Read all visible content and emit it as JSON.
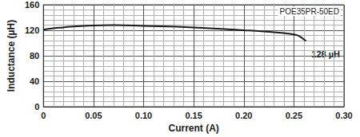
{
  "chart_data": {
    "type": "line",
    "x_label": "Current (A)",
    "y_label": "Inductance (µH)",
    "series": [
      {
        "name": "POE35PR-50ED",
        "color": "#1a1a1a",
        "x": [
          0,
          0.01,
          0.02,
          0.03,
          0.05,
          0.07,
          0.1,
          0.15,
          0.2,
          0.22,
          0.24,
          0.25,
          0.255,
          0.262
        ],
        "values": [
          121,
          123,
          124.5,
          126,
          127.5,
          128,
          127,
          124.5,
          120,
          118,
          115.5,
          113.5,
          111,
          103
        ]
      }
    ],
    "annotations": [
      "128 µH"
    ],
    "xlim": [
      0,
      0.3
    ],
    "xticks": [
      0,
      0.05,
      {
        "value": 0.1,
        "label": "0.10"
      },
      0.15,
      {
        "value": 0.2,
        "label": "0.20"
      },
      0.25,
      {
        "value": 0.3,
        "label": "0.30"
      }
    ],
    "ylim": [
      0,
      160
    ],
    "yticks": [
      0,
      40,
      80,
      120,
      160
    ],
    "grid": true
  }
}
